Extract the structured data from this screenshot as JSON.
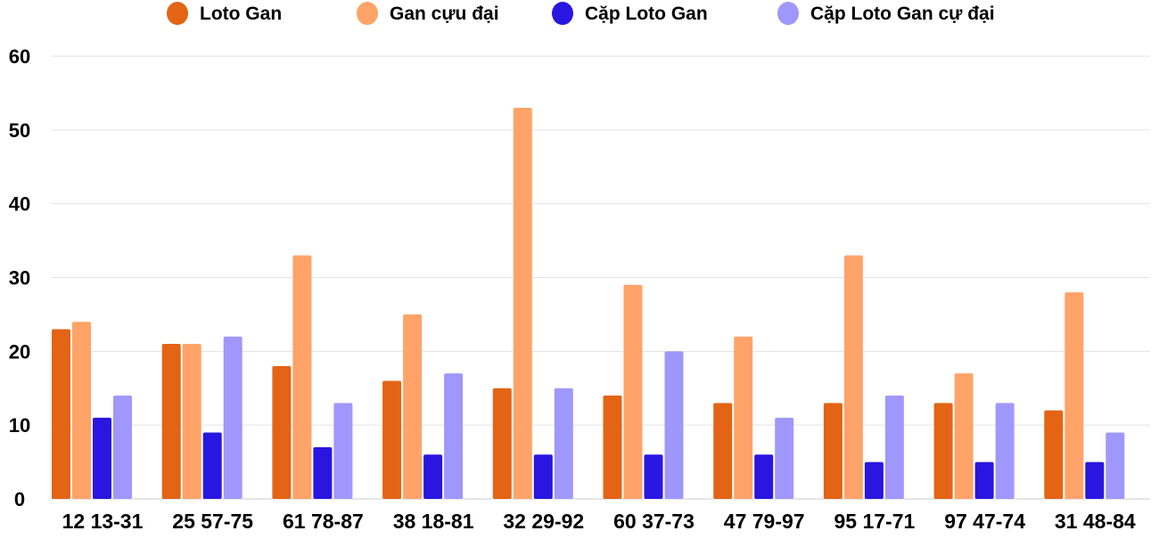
{
  "chart_data": {
    "type": "bar",
    "categories": [
      "12 13-31",
      "25 57-75",
      "61 78-87",
      "38 18-81",
      "32 29-92",
      "60 37-73",
      "47 79-97",
      "95 17-71",
      "97 47-74",
      "31 48-84"
    ],
    "series": [
      {
        "name": "Loto Gan",
        "color": "#e36414",
        "values": [
          23,
          21,
          18,
          16,
          15,
          14,
          13,
          13,
          13,
          12
        ]
      },
      {
        "name": "Gan cựu đại",
        "color": "#ffa368",
        "values": [
          24,
          21,
          33,
          25,
          53,
          29,
          22,
          33,
          17,
          28
        ]
      },
      {
        "name": "Cặp Loto Gan",
        "color": "#2916e0",
        "values": [
          11,
          9,
          7,
          6,
          6,
          6,
          6,
          5,
          5,
          5
        ]
      },
      {
        "name": "Cặp Loto Gan cự đại",
        "color": "#a097fd",
        "values": [
          14,
          22,
          13,
          17,
          15,
          20,
          11,
          14,
          13,
          9
        ]
      }
    ],
    "yticks": [
      "0",
      "10",
      "20",
      "30",
      "40",
      "50",
      "60"
    ],
    "ylim": [
      0,
      60
    ],
    "grid": true,
    "legend": "top",
    "title": "",
    "xlabel": "",
    "ylabel": ""
  }
}
